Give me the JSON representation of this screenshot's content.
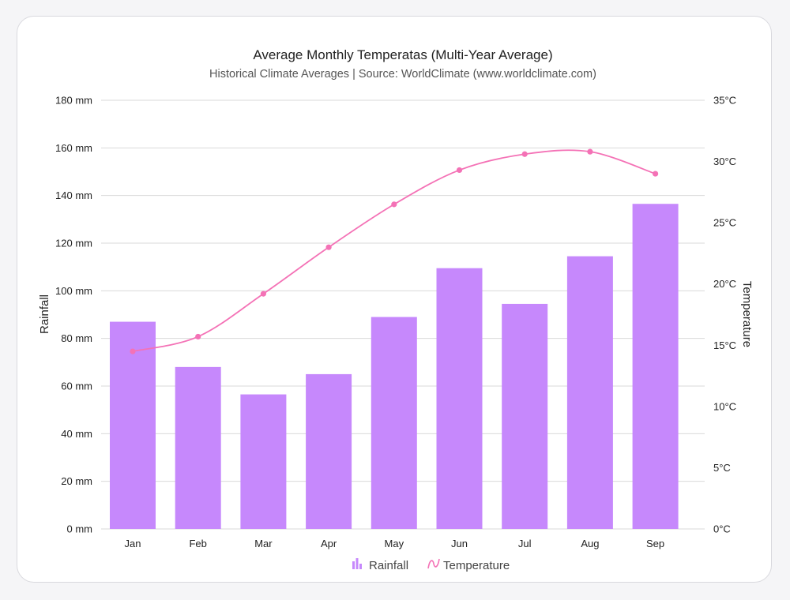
{
  "chart_data": {
    "type": "bar",
    "title": "Average Monthly Temperatas (Multi-Year Average)",
    "subtitle": "Historical Climate Averages | Source: WorldClimate (www.worldclimate.com)",
    "categories": [
      "Jan",
      "Feb",
      "Mar",
      "Apr",
      "May",
      "Jun",
      "Jul",
      "Aug",
      "Sep"
    ],
    "series": [
      {
        "name": "Rainfall",
        "type": "bar",
        "axis": "left",
        "color": "#c688fc",
        "values": [
          87,
          68,
          56.5,
          65,
          89,
          109.5,
          94.5,
          114.5,
          136.5
        ]
      },
      {
        "name": "Temperature",
        "type": "line",
        "axis": "right",
        "color": "#f472b6",
        "values": [
          14.5,
          15.7,
          19.2,
          23,
          26.5,
          29.3,
          30.6,
          30.8,
          29
        ]
      }
    ],
    "y_left": {
      "label": "Rainfall",
      "min": 0,
      "max": 180,
      "ticks": [
        "0 mm",
        "20 mm",
        "40 mm",
        "60 mm",
        "80 mm",
        "100 mm",
        "120 mm",
        "140 mm",
        "160 mm",
        "180 mm"
      ]
    },
    "y_right": {
      "label": "Temperature",
      "min": 0,
      "max": 35,
      "ticks": [
        "0°C",
        "5°C",
        "10°C",
        "15°C",
        "20°C",
        "25°C",
        "30°C",
        "35°C"
      ]
    },
    "grid": true,
    "legend": "bottom-center"
  }
}
